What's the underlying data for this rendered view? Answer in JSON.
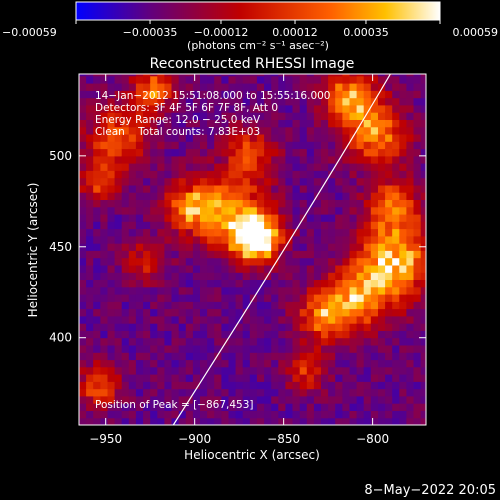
{
  "chart_data": {
    "type": "heatmap",
    "title": "Reconstructed RHESSI Image",
    "xlabel": "Heliocentric X (arcsec)",
    "ylabel": "Heliocentric Y (arcsec)",
    "xlim": [
      -965,
      -770
    ],
    "ylim": [
      352,
      545
    ],
    "xticks": [
      -950,
      -900,
      -850,
      -800
    ],
    "xtick_labels": [
      "−950",
      "−900",
      "−850",
      "−800"
    ],
    "yticks": [
      400,
      450,
      500
    ],
    "ytick_labels": [
      "400",
      "450",
      "500"
    ],
    "colorbar": {
      "range": [
        -0.00059,
        0.00059
      ],
      "ticks": [
        -0.00059,
        -0.00035,
        -0.00012,
        0.00012,
        0.00035,
        0.00059
      ],
      "tick_labels": [
        "−0.00059",
        "−0.00035",
        "−0.00012",
        "0.00012",
        "0.00035",
        "0.00059"
      ],
      "unit_label": "(photons cm⁻² s⁻¹ asec⁻²)",
      "colors": [
        "#0000ff",
        "#600080",
        "#c00000",
        "#ff6000",
        "#ffc000",
        "#ffffff"
      ]
    },
    "annotations": [
      "14−Jan−2012 15:51:08.000 to 15:55:16.000",
      "Detectors: 3F 4F 5F 6F 7F 8F, Att 0",
      "Energy Range: 12.0 − 25.0 keV",
      "Clean    Total counts: 7.83E+03"
    ],
    "peak_label": "Position of Peak = [−867,453]",
    "peak": [
      -867,
      453
    ],
    "limb_line": [
      [
        -912,
        352
      ],
      [
        -835,
        470
      ],
      [
        -790,
        545
      ]
    ],
    "grid": false
  },
  "footer_date": "8−May−2022 20:05"
}
